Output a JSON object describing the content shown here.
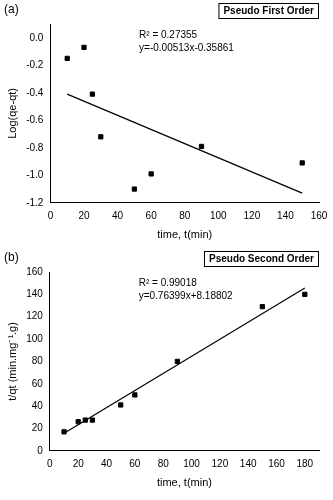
{
  "chart_data": [
    {
      "type": "scatter",
      "panel_label": "(a)",
      "title": "Pseudo First Order",
      "annotations": [
        "R² = 0.27355",
        "y=-0.00513x-0.35861"
      ],
      "x_label": "time, t(min)",
      "y_label": "Log(qe-qt)",
      "x": [
        10,
        20,
        25,
        30,
        50,
        60,
        90,
        150
      ],
      "values": [
        -0.15,
        -0.07,
        -0.41,
        -0.72,
        -1.1,
        -0.99,
        -0.79,
        -0.91
      ],
      "fit": {
        "x": [
          10,
          150
        ],
        "values": [
          -0.41,
          -1.13
        ]
      },
      "color": "#000000",
      "marker": "square",
      "line_style": "solid",
      "xlim": [
        0,
        160
      ],
      "xticks": [
        0,
        20,
        40,
        60,
        80,
        100,
        120,
        140,
        160
      ],
      "ylim": [
        -1.2,
        0.1
      ],
      "yticks": [
        -1.2,
        {
          "value": -1,
          "label": "-1.0"
        },
        -0.8,
        -0.6,
        -0.4,
        -0.2,
        {
          "value": 0,
          "label": "0.0"
        }
      ],
      "grid": false
    },
    {
      "type": "scatter",
      "panel_label": "(b)",
      "title": "Pseudo Second Order",
      "annotations": [
        "R² = 0.99018",
        "y=0.76399x+8.18802"
      ],
      "x_label": "time, t(min)",
      "y_label": "t/qt (min.mg⁻¹.g)",
      "x": [
        10,
        20,
        25,
        30,
        50,
        60,
        90,
        150,
        180
      ],
      "values": [
        17,
        26,
        27.5,
        27.5,
        41,
        50,
        80,
        129,
        140
      ],
      "fit": {
        "x": [
          10,
          180
        ],
        "values": [
          15.8,
          145.7
        ]
      },
      "color": "#000000",
      "marker": "square",
      "line_style": "solid",
      "xlim": [
        0,
        190
      ],
      "xticks": [
        0,
        20,
        40,
        60,
        80,
        100,
        120,
        140,
        160,
        180
      ],
      "ylim": [
        0,
        160
      ],
      "yticks": [
        0,
        20,
        40,
        60,
        80,
        100,
        120,
        140,
        160
      ],
      "grid": false
    }
  ]
}
